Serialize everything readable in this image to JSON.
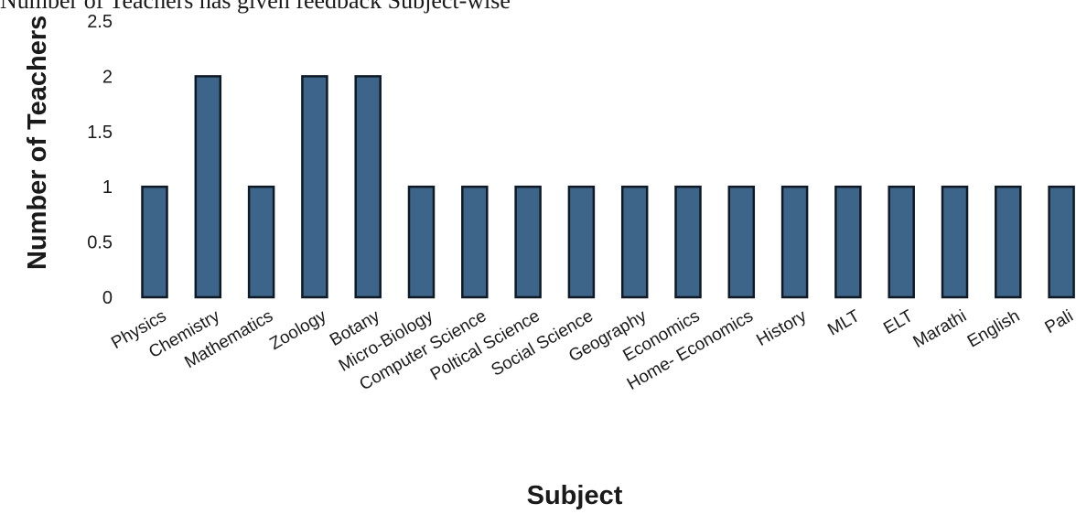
{
  "chart_data": {
    "type": "bar",
    "title": "Number of Teachers has given feedback Subject-wise",
    "xlabel": "Subject",
    "ylabel": "Number of Teachers",
    "ylim": [
      0,
      2.5
    ],
    "yticks": [
      0,
      0.5,
      1,
      1.5,
      2,
      2.5
    ],
    "yticks_text": [
      "0",
      "0.5",
      "1",
      "1.5",
      "2",
      "2.5"
    ],
    "grid": false,
    "categories": [
      "Physics",
      "Chemistry",
      "Mathematics",
      "Zoology",
      "Botany",
      "Micro-Biology",
      "Computer Science",
      "Poltical Science",
      "Social Science",
      "Geography",
      "Economics",
      "Home- Economics",
      "History",
      "MLT",
      "ELT",
      "Marathi",
      "English",
      "Pali"
    ],
    "values": [
      1,
      2,
      1,
      2,
      2,
      1,
      1,
      1,
      1,
      1,
      1,
      1,
      1,
      1,
      1,
      1,
      1,
      1
    ],
    "bar_color": "#3d6589"
  }
}
